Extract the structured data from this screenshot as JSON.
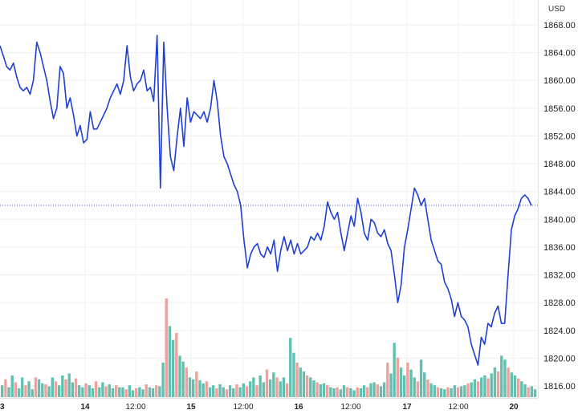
{
  "chart_data": {
    "type": "line",
    "currency_label": "USD",
    "line_color": "#1f3fd6",
    "volume_up_color": "#45b5a3",
    "volume_down_color": "#ef8f8a",
    "last_price_line_color": "#3a5bd9",
    "grid": true,
    "ylim": [
      1814.5,
      1871.5
    ],
    "y_ticks": [
      "1868.00",
      "1864.00",
      "1860.00",
      "1856.00",
      "1852.00",
      "1848.00",
      "1844.00",
      "1840.00",
      "1836.00",
      "1832.00",
      "1828.00",
      "1824.00",
      "1820.00",
      "1816.00"
    ],
    "x_ticks": [
      {
        "label": "3",
        "bold": true
      },
      {
        "label": "14",
        "bold": true
      },
      {
        "label": "12:00",
        "bold": false
      },
      {
        "label": "15",
        "bold": true
      },
      {
        "label": "12:00",
        "bold": false
      },
      {
        "label": "16",
        "bold": true
      },
      {
        "label": "12:00",
        "bold": false
      },
      {
        "label": "17",
        "bold": true
      },
      {
        "label": "12:00",
        "bold": false
      },
      {
        "label": "20",
        "bold": true
      }
    ],
    "last_price": 1842.0,
    "series": [
      {
        "values": [
          1865.0,
          1863.5,
          1862.0,
          1861.5,
          1862.5,
          1860.5,
          1859.0,
          1858.5,
          1859.0,
          1858.0,
          1860.0,
          1865.5,
          1864.0,
          1862.0,
          1860.0,
          1857.0,
          1854.5,
          1856.0,
          1862.0,
          1861.0,
          1856.0,
          1857.5,
          1855.0,
          1852.0,
          1853.5,
          1851.0,
          1851.5,
          1855.5,
          1853.0,
          1853.0,
          1854.0,
          1855.0,
          1856.0,
          1857.5,
          1858.5,
          1859.5,
          1858.0,
          1860.0,
          1865.0,
          1860.5,
          1858.5,
          1859.5,
          1860.0,
          1861.5,
          1858.5,
          1859.0,
          1857.0,
          1866.5,
          1844.5,
          1865.5,
          1856.0,
          1849.0,
          1847.0,
          1852.0,
          1856.0,
          1850.5,
          1857.5,
          1854.0,
          1855.5,
          1855.0,
          1854.5,
          1855.5,
          1854.0,
          1856.0,
          1860.0,
          1857.0,
          1852.0,
          1849.0,
          1848.0,
          1846.5,
          1845.0,
          1844.0,
          1842.0,
          1837.0,
          1833.0,
          1835.0,
          1836.0,
          1836.5,
          1835.0,
          1834.5,
          1836.0,
          1835.0,
          1837.0,
          1832.5,
          1835.5,
          1837.5,
          1835.5,
          1837.0,
          1835.0,
          1836.5,
          1835.0,
          1835.5,
          1836.0,
          1837.5,
          1837.0,
          1838.0,
          1837.0,
          1839.0,
          1842.5,
          1841.0,
          1840.0,
          1841.0,
          1838.0,
          1835.5,
          1838.0,
          1840.5,
          1839.0,
          1843.0,
          1841.0,
          1838.0,
          1837.0,
          1840.0,
          1839.5,
          1838.0,
          1837.5,
          1838.5,
          1836.5,
          1835.5,
          1832.0,
          1828.0,
          1830.5,
          1836.0,
          1838.5,
          1841.5,
          1844.5,
          1843.5,
          1842.0,
          1843.0,
          1840.0,
          1837.0,
          1835.5,
          1834.0,
          1833.5,
          1831.0,
          1830.0,
          1828.5,
          1826.0,
          1828.0,
          1826.0,
          1825.5,
          1824.5,
          1822.0,
          1820.5,
          1819.0,
          1823.0,
          1822.0,
          1825.0,
          1824.5,
          1826.5,
          1827.5,
          1825.0,
          1825.0,
          1832.0,
          1838.5,
          1840.5,
          1841.5,
          1843.0,
          1843.5,
          1843.0,
          1842.0
        ]
      }
    ],
    "volume": [
      0.12,
      0.18,
      0.1,
      0.22,
      0.15,
      0.09,
      0.2,
      0.12,
      0.16,
      0.08,
      0.2,
      0.18,
      0.14,
      0.13,
      0.11,
      0.2,
      0.16,
      0.12,
      0.22,
      0.18,
      0.24,
      0.15,
      0.19,
      0.12,
      0.1,
      0.14,
      0.12,
      0.09,
      0.16,
      0.1,
      0.15,
      0.11,
      0.13,
      0.09,
      0.12,
      0.1,
      0.1,
      0.08,
      0.12,
      0.07,
      0.09,
      0.1,
      0.08,
      0.13,
      0.1,
      0.09,
      0.12,
      0.11,
      0.35,
      1.0,
      0.72,
      0.58,
      0.65,
      0.42,
      0.36,
      0.3,
      0.2,
      0.18,
      0.26,
      0.17,
      0.14,
      0.16,
      0.1,
      0.12,
      0.09,
      0.13,
      0.1,
      0.08,
      0.12,
      0.09,
      0.13,
      0.1,
      0.14,
      0.11,
      0.16,
      0.2,
      0.12,
      0.22,
      0.15,
      0.28,
      0.18,
      0.25,
      0.2,
      0.16,
      0.2,
      0.14,
      0.6,
      0.45,
      0.35,
      0.3,
      0.26,
      0.22,
      0.2,
      0.17,
      0.15,
      0.13,
      0.14,
      0.12,
      0.1,
      0.09,
      0.1,
      0.08,
      0.12,
      0.1,
      0.09,
      0.07,
      0.1,
      0.09,
      0.12,
      0.1,
      0.14,
      0.15,
      0.13,
      0.11,
      0.15,
      0.35,
      0.24,
      0.55,
      0.4,
      0.3,
      0.22,
      0.35,
      0.28,
      0.2,
      0.16,
      0.38,
      0.25,
      0.18,
      0.14,
      0.12,
      0.1,
      0.09,
      0.08,
      0.1,
      0.09,
      0.12,
      0.1,
      0.11,
      0.12,
      0.14,
      0.15,
      0.18,
      0.16,
      0.2,
      0.22,
      0.19,
      0.24,
      0.3,
      0.26,
      0.42,
      0.38,
      0.3,
      0.25,
      0.22,
      0.19,
      0.16,
      0.13,
      0.1,
      0.11,
      0.08
    ]
  }
}
